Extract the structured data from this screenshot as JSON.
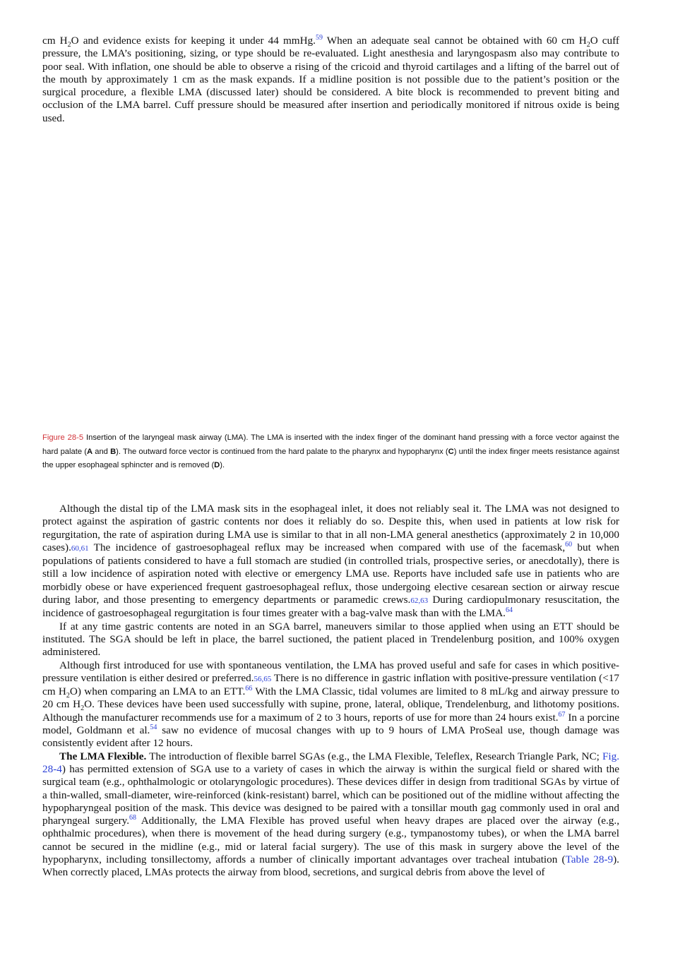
{
  "page": {
    "intro": [
      "cm H",
      "2",
      "O and evidence exists for keeping it under 44 mmHg.",
      "59",
      " When an adequate seal cannot be obtained with 60 cm H",
      "2",
      "O cuff pressure, the LMA’s positioning, sizing, or type should be re-evaluated. Light anesthesia and laryngospasm also may contribute to poor seal. With inflation, one should be able to observe a rising of the cricoid and thyroid cartilages and a lifting of the barrel out of the mouth by approximately 1 cm as the mask expands. If a midline position is not possible due to the patient’s position or the surgical procedure, a flexible LMA (discussed later) should be considered. A bite block is recommended to prevent biting and occlusion of the LMA barrel. Cuff pressure should be measured after insertion and periodically monitored if nitrous oxide is being used."
    ],
    "caption": [
      "Figure 28-5",
      " Insertion of the laryngeal mask airway (LMA). The LMA is inserted with the index finger of the dominant hand pressing with a force vector against the hard palate (",
      "A",
      " and ",
      "B",
      "). The outward force vector is continued from the hard palate to the pharynx and hypopharynx (",
      "C",
      ") until the index finger meets resistance against the upper esophageal sphincter and is removed (",
      "D",
      ")."
    ],
    "body": [
      [
        "Although the distal tip of the LMA mask sits in the esophageal inlet, it does not reliably seal it. The LMA was not designed to protect against the aspiration of gastric contents nor does it reliably do so. Despite this, when used in patients at low risk for regurgitation, the rate of aspiration during LMA use is similar to that in all non-LMA general anesthetics (approximately 2 in 10,000 cases).",
        "60,61",
        " The incidence of gastroesophageal reflux may be increased when compared with use of the facemask,",
        "60",
        " but when populations of patients considered to have a full stomach are studied (in controlled trials, prospective series, or anecdotally), there is still a low incidence of aspiration noted with elective or emergency LMA use. Reports have included safe use in patients who are morbidly obese or have experienced frequent gastroesophageal reflux, those undergoing elective cesarean section or airway rescue during labor, and those presenting to emergency departments or paramedic crews.",
        "62,63",
        " During cardiopulmonary resuscitation, the incidence of gastroesophageal regurgitation is four times greater with a bag-valve mask than with the LMA.",
        "64"
      ],
      [
        "If at any time gastric contents are noted in an SGA barrel, maneuvers similar to those applied when using an ETT should be instituted. The SGA should be left in place, the barrel suctioned, the patient placed in Trendelenburg position, and 100% oxygen administered."
      ],
      [
        "Although first introduced for use with spontaneous ventilation, the LMA has proved useful and safe for cases in which positive-pressure ventilation is either desired or preferred.",
        "56,65",
        " There is no difference in gastric inflation with positive-pressure ventilation (<17 cm H",
        "2",
        "O) when comparing an LMA to an ETT.",
        "66",
        " With the LMA Classic, tidal volumes are limited to 8 mL/kg and airway pressure to 20 cm H",
        "2",
        "O. These devices have been used successfully with supine, prone, lateral, oblique, Trendelenburg, and lithotomy positions. Although the manufacturer recommends use for a maximum of 2 to 3 hours, reports of use for more than 24 hours exist.",
        "67",
        " In a porcine model, Goldmann et al.",
        "54",
        " saw no evidence of mucosal changes with up to 9 hours of LMA ProSeal use, though damage was consistently evident after 12 hours."
      ],
      [
        "The LMA Flexible.",
        " The introduction of flexible barrel SGAs (e.g., the LMA Flexible, Teleflex, Research Triangle Park, NC; ",
        "Fig. 28-4",
        ") has permitted extension of SGA use to a variety of cases in which the airway is within the surgical field or shared with the surgical team (e.g., ophthalmologic or otolaryngologic procedures). These devices differ in design from traditional SGAs by virtue of a thin-walled, small-diameter, wire-reinforced (kink-resistant) barrel, which can be positioned out of the midline without affecting the hypopharyngeal position of the mask. This device was designed to be paired with a tonsillar mouth gag commonly used in oral and pharyngeal surgery.",
        "68",
        " Additionally, the LMA Flexible has proved useful when heavy drapes are placed over the airway (e.g., ophthalmic procedures), when there is movement of the head during surgery (e.g., tympanostomy tubes), or when the LMA barrel cannot be secured in the midline (e.g., mid or lateral facial surgery). The use of this mask in surgery above the level of the hypopharynx, including tonsillectomy, affords a number of clinically important advantages over tracheal intubation (",
        "Table 28-9",
        "). When correctly placed, LMAs protects the airway from blood, secretions, and surgical debris from above the level of"
      ]
    ]
  }
}
